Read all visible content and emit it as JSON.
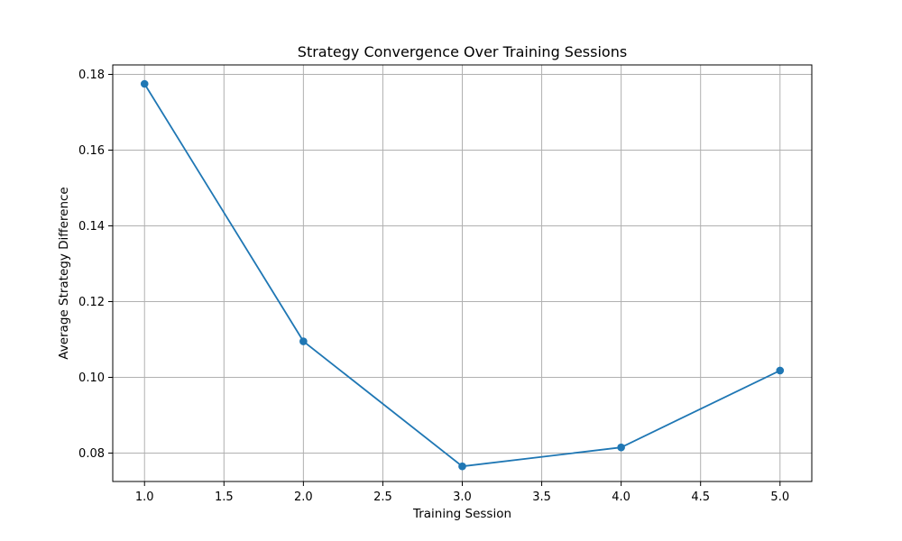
{
  "chart_data": {
    "type": "line",
    "title": "Strategy Convergence Over Training Sessions",
    "xlabel": "Training Session",
    "ylabel": "Average Strategy Difference",
    "xlim": [
      0.8,
      5.2
    ],
    "ylim": [
      0.0725,
      0.1825
    ],
    "x_ticks": [
      1.0,
      1.5,
      2.0,
      2.5,
      3.0,
      3.5,
      4.0,
      4.5,
      5.0
    ],
    "x_tick_labels": [
      "1.0",
      "1.5",
      "2.0",
      "2.5",
      "3.0",
      "3.5",
      "4.0",
      "4.5",
      "5.0"
    ],
    "y_ticks": [
      0.08,
      0.1,
      0.12,
      0.14,
      0.16,
      0.18
    ],
    "y_tick_labels": [
      "0.08",
      "0.10",
      "0.12",
      "0.14",
      "0.16",
      "0.18"
    ],
    "grid": true,
    "legend": "none",
    "series": [
      {
        "x": [
          1,
          2,
          3,
          4,
          5
        ],
        "values": [
          0.1775,
          0.1095,
          0.0765,
          0.0815,
          0.1018
        ],
        "color": "#1f77b4",
        "marker": "circle"
      }
    ]
  }
}
